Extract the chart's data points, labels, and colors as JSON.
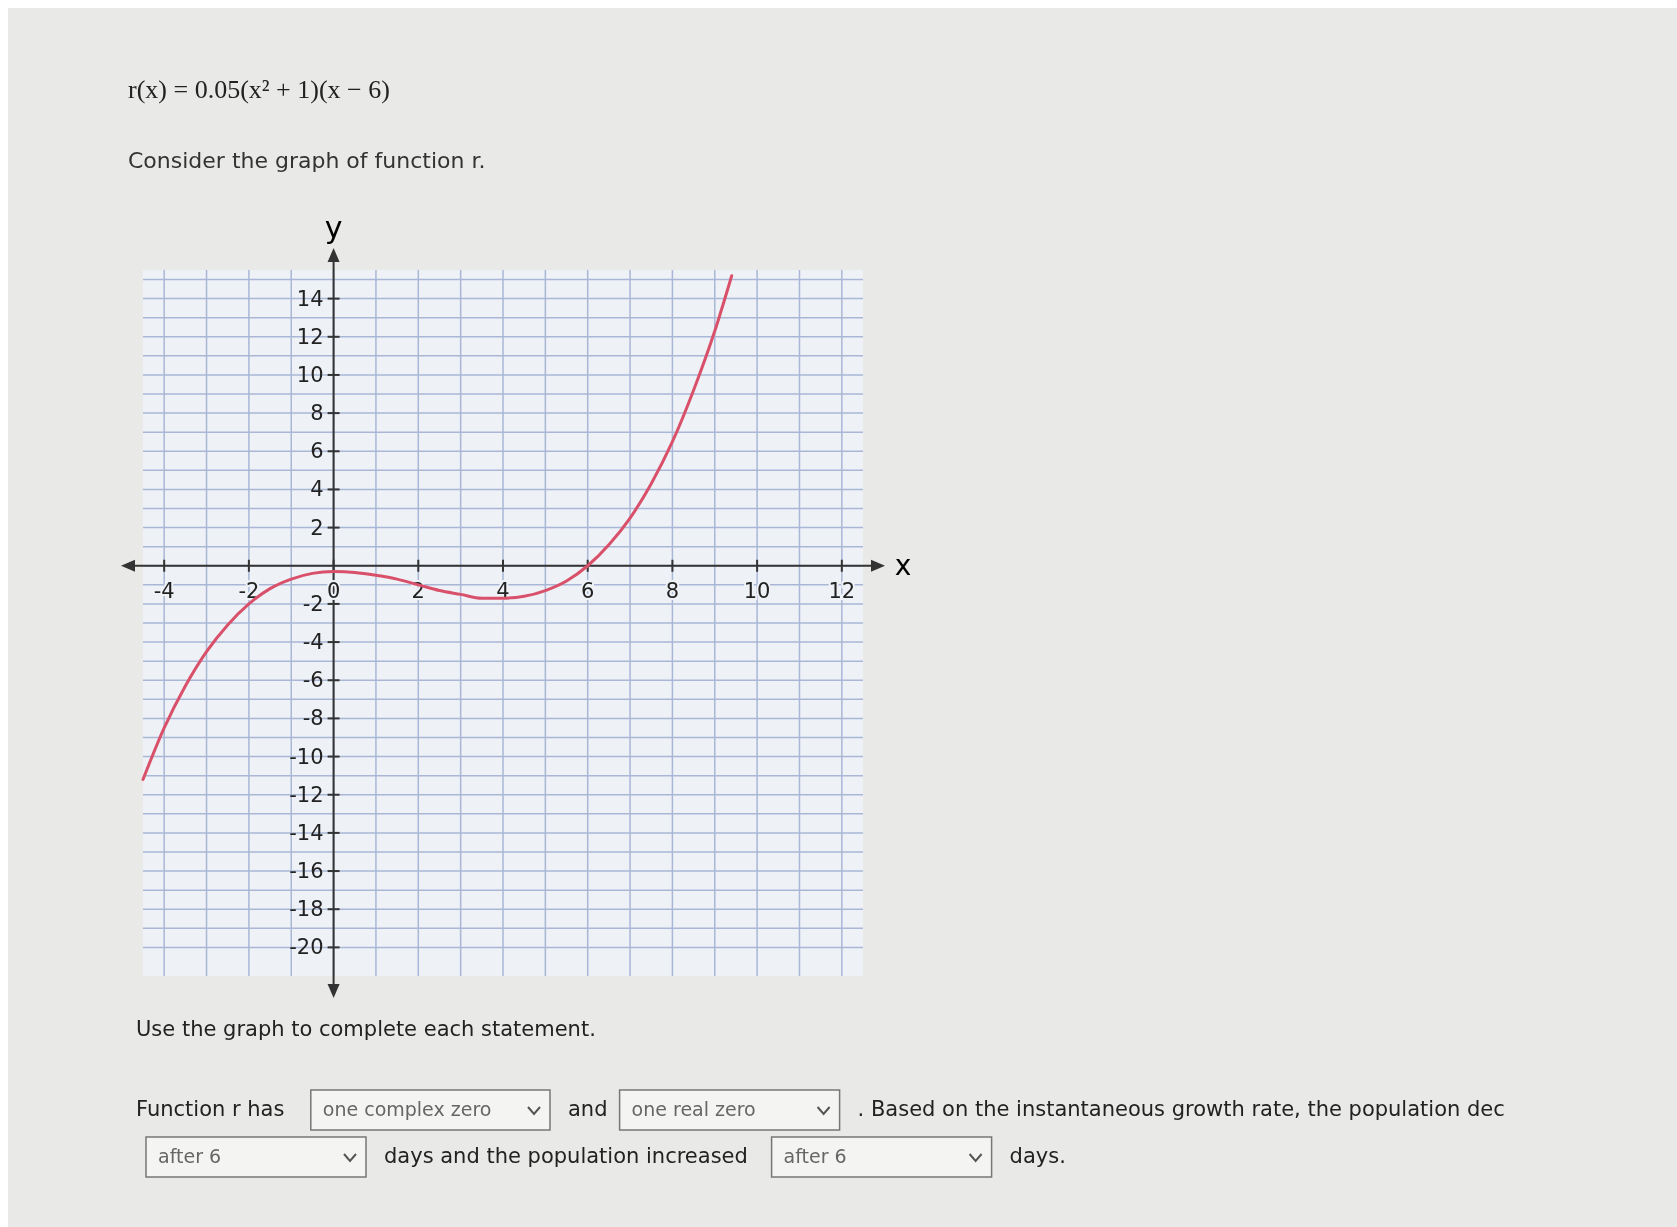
{
  "chart_data": {
    "type": "line",
    "title": "r(x) = 0.05(x² + 1)(x − 6)",
    "subtitle": "Consider the graph of function r.",
    "xlabel": "x",
    "ylabel": "y",
    "x": [
      -4.5,
      -4,
      -3.5,
      -3,
      -2.5,
      -2,
      -1.5,
      -1,
      -0.5,
      0,
      0.5,
      1,
      1.5,
      2,
      2.5,
      3,
      3.5,
      4,
      4.5,
      5,
      5.5,
      6,
      6.5,
      7,
      7.5,
      8,
      8.5,
      9,
      9.4
    ],
    "series": [
      {
        "color": "#d9506a",
        "values": [
          -11.2,
          -8.5,
          -6.3,
          -4.5,
          -3.1,
          -2.0,
          -1.2,
          -0.7,
          -0.4,
          -0.3,
          -0.35,
          -0.5,
          -0.7,
          -1.0,
          -1.3,
          -1.5,
          -1.7,
          -1.7,
          -1.6,
          -1.3,
          -0.8,
          0,
          1.1,
          2.5,
          4.3,
          6.5,
          9.2,
          12.3,
          15.2
        ]
      }
    ],
    "xlim": [
      -4.5,
      12.5
    ],
    "ylim": [
      -21.5,
      15.5
    ],
    "xticks": [
      -4,
      {
        "value": -3,
        "label": null
      },
      -2,
      {
        "value": -1,
        "label": null
      },
      0,
      {
        "value": 1,
        "label": null
      },
      2,
      {
        "value": 3,
        "label": null
      },
      4,
      {
        "value": 5,
        "label": null
      },
      6,
      {
        "value": 7,
        "label": null
      },
      8,
      {
        "value": 9,
        "label": null
      },
      10,
      {
        "value": 11,
        "label": null
      },
      12
    ],
    "yticks": [
      -20,
      {
        "value": -19,
        "label": null
      },
      -18,
      {
        "value": -17,
        "label": null
      },
      -16,
      {
        "value": -15,
        "label": null
      },
      -14,
      {
        "value": -13,
        "label": null
      },
      -12,
      {
        "value": -11,
        "label": null
      },
      -10,
      {
        "value": -9,
        "label": null
      },
      -8,
      {
        "value": -7,
        "label": null
      },
      -6,
      {
        "value": -5,
        "label": null
      },
      -4,
      {
        "value": -3,
        "label": null
      },
      -2,
      {
        "value": -1,
        "label": null
      },
      {
        "value": 0,
        "label": null
      },
      {
        "value": 1,
        "label": null
      },
      2,
      {
        "value": 3,
        "label": null
      },
      4,
      {
        "value": 5,
        "label": null
      },
      6,
      {
        "value": 7,
        "label": null
      },
      8,
      {
        "value": 9,
        "label": null
      },
      10,
      {
        "value": 11,
        "label": null
      },
      12,
      {
        "value": 13,
        "label": null
      },
      14,
      {
        "value": 15,
        "label": null
      }
    ],
    "grid": true,
    "line_style": "solid",
    "marker": "none",
    "annotations": [
      "Use the graph to complete each statement.",
      "Function r has",
      "one complex zero",
      "and",
      "one real zero",
      ". Based on the instantaneous growth rate, the population dec",
      "after 6",
      "days and the population increased",
      "after 6",
      "days."
    ]
  }
}
